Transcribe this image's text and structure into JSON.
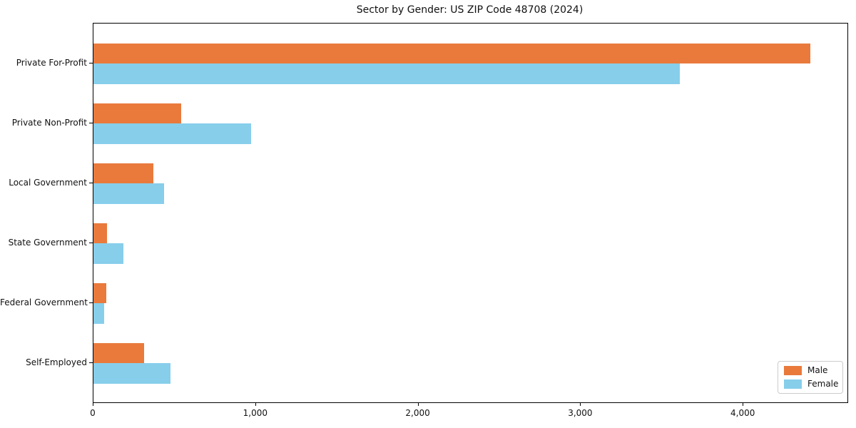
{
  "chart_data": {
    "type": "bar",
    "orientation": "horizontal",
    "title": "Sector by Gender: US ZIP Code 48708 (2024)",
    "categories": [
      "Private For-Profit",
      "Private Non-Profit",
      "Local Government",
      "State Government",
      "Federal Government",
      "Self-Employed"
    ],
    "series": [
      {
        "name": "Male",
        "color": "#e97a3c",
        "values": [
          4410,
          540,
          370,
          85,
          80,
          310
        ]
      },
      {
        "name": "Female",
        "color": "#87ceeb",
        "values": [
          3610,
          970,
          435,
          185,
          65,
          475
        ]
      }
    ],
    "xlabel": "",
    "ylabel": "",
    "xlim": [
      0,
      4640
    ],
    "x_ticks": [
      {
        "value": 0,
        "label": "0"
      },
      {
        "value": 1000,
        "label": "1,000"
      },
      {
        "value": 2000,
        "label": "2,000"
      },
      {
        "value": 3000,
        "label": "3,000"
      },
      {
        "value": 4000,
        "label": "4,000"
      }
    ],
    "grid": false,
    "legend": {
      "position": "lower right"
    },
    "colors": {
      "spine": "#000000",
      "background": "#ffffff",
      "legend_border": "#cccccc"
    }
  }
}
